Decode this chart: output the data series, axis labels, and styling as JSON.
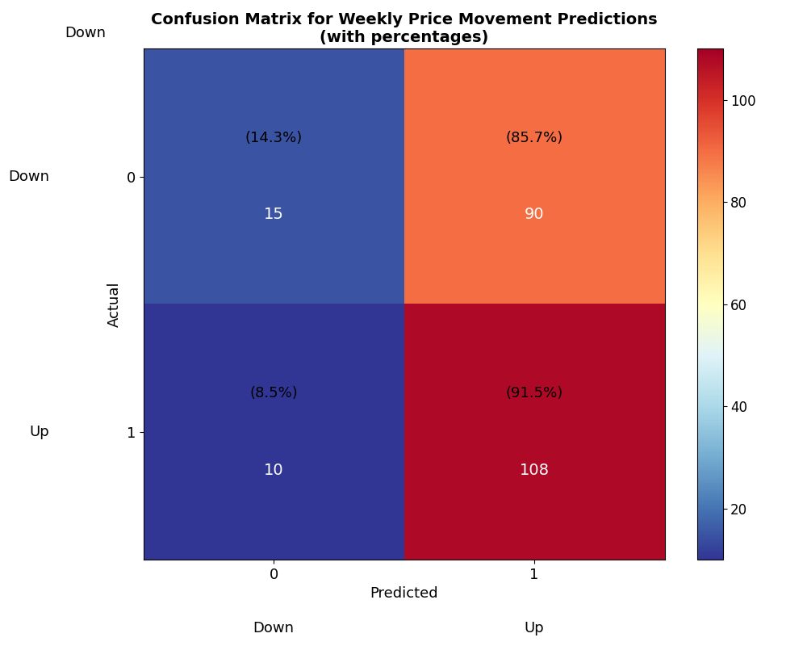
{
  "matrix": [
    [
      15,
      90
    ],
    [
      10,
      108
    ]
  ],
  "percentages": [
    [
      "(14.3%)",
      "(85.7%)"
    ],
    [
      "(8.5%)",
      "(91.5%)"
    ]
  ],
  "title": "Confusion Matrix for Weekly Price Movement Predictions\n(with percentages)",
  "xlabel": "Predicted",
  "ylabel": "Actual",
  "xtick_labels": [
    "0",
    "1"
  ],
  "ytick_labels": [
    "0",
    "1"
  ],
  "class_label_x_left": "Down",
  "class_label_x_right": "Up",
  "class_label_y_top": "Down",
  "class_label_y_bottom": "Up",
  "colormap": "RdYlBu_r",
  "vmin": 10,
  "vmax": 110,
  "pct_text_color": "black",
  "val_text_color": "white",
  "figsize": [
    10,
    8
  ],
  "dpi": 100,
  "title_fontsize": 14,
  "label_fontsize": 13,
  "tick_fontsize": 13,
  "annotation_fontsize": 13,
  "val_fontsize": 14
}
